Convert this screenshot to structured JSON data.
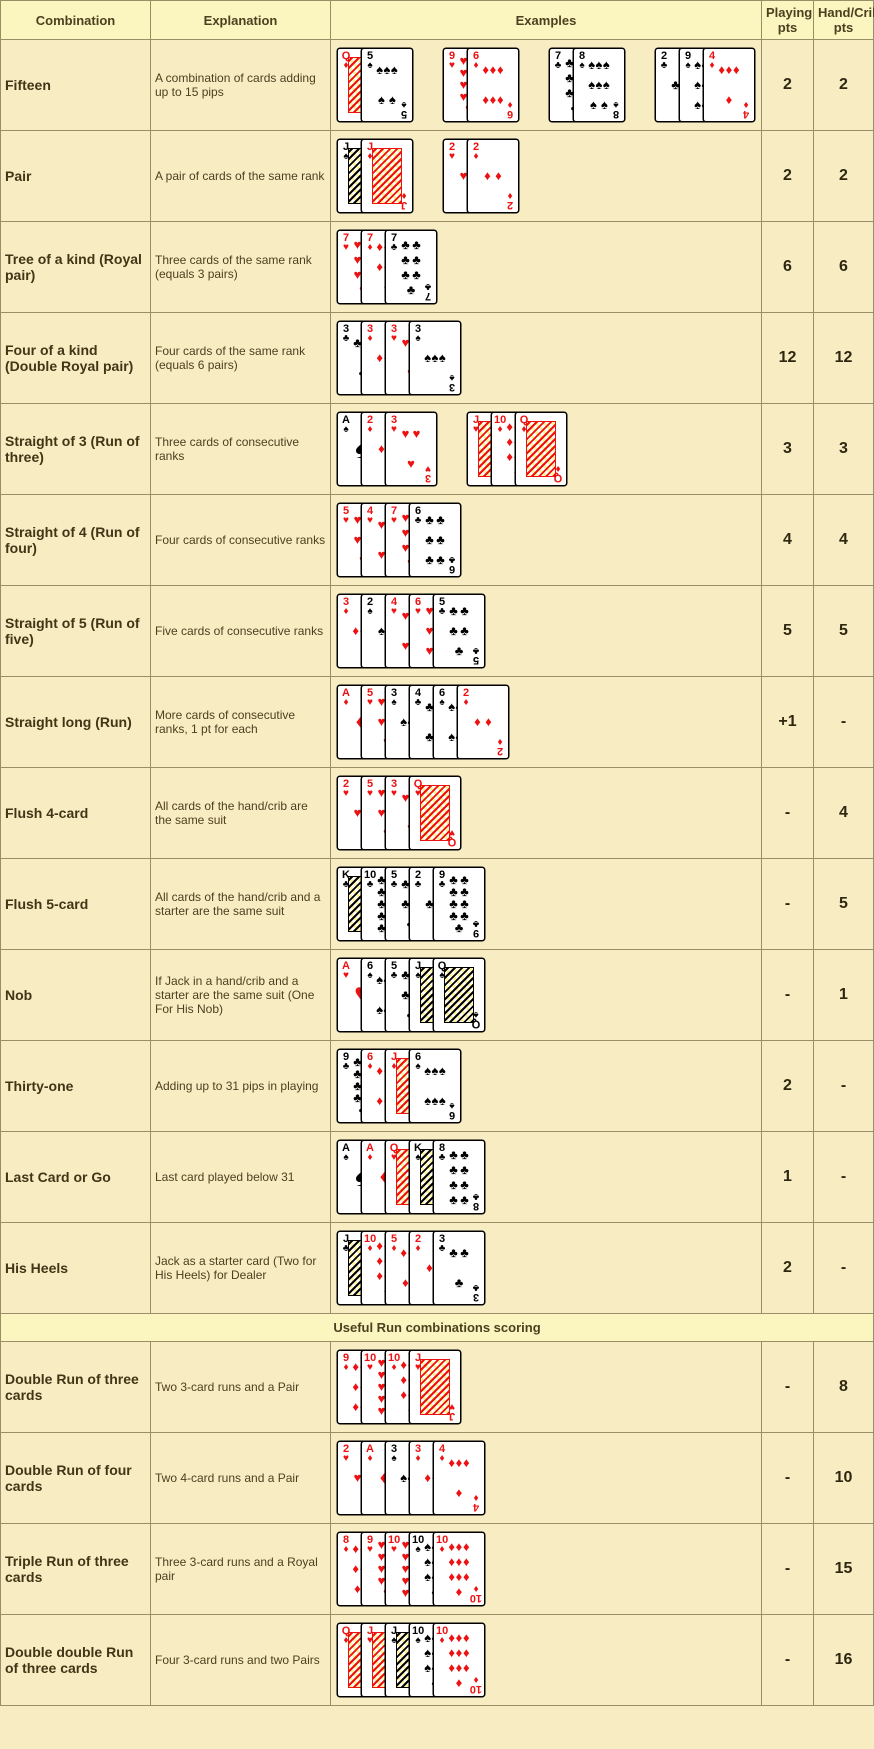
{
  "headers": {
    "combination": "Combination",
    "explanation": "Explanation",
    "examples": "Examples",
    "playing_pts": "Playing pts",
    "hand_crib_pts": "Hand/Crib pts"
  },
  "section_header": "Useful Run combinations scoring",
  "suit_glyphs": {
    "S": "♠",
    "H": "♥",
    "D": "♦",
    "C": "♣"
  },
  "suit_colors": {
    "S": "black",
    "H": "red",
    "D": "red",
    "C": "black"
  },
  "rows": [
    {
      "name": "Fifteen",
      "explanation": "A combination of cards adding up to 15 pips",
      "playing_pts": "2",
      "hand_pts": "2",
      "examples": [
        {
          "layout": "overlap",
          "cards": [
            {
              "r": "Q",
              "s": "D"
            },
            {
              "r": "5",
              "s": "S"
            }
          ]
        },
        {
          "layout": "overlap",
          "cards": [
            {
              "r": "9",
              "s": "H"
            },
            {
              "r": "6",
              "s": "D"
            }
          ]
        },
        {
          "layout": "overlap",
          "cards": [
            {
              "r": "7",
              "s": "C"
            },
            {
              "r": "8",
              "s": "S"
            }
          ]
        },
        {
          "layout": "overlap",
          "cards": [
            {
              "r": "2",
              "s": "C"
            },
            {
              "r": "9",
              "s": "S"
            },
            {
              "r": "4",
              "s": "D"
            }
          ]
        }
      ]
    },
    {
      "name": "Pair",
      "explanation": "A pair of cards of the same rank",
      "playing_pts": "2",
      "hand_pts": "2",
      "examples": [
        {
          "layout": "overlap",
          "cards": [
            {
              "r": "J",
              "s": "S"
            },
            {
              "r": "J",
              "s": "D"
            }
          ]
        },
        {
          "layout": "overlap",
          "cards": [
            {
              "r": "2",
              "s": "H"
            },
            {
              "r": "2",
              "s": "D"
            }
          ]
        }
      ]
    },
    {
      "name": "Tree of a kind (Royal pair)",
      "explanation": "Three cards of the same rank (equals 3 pairs)",
      "playing_pts": "6",
      "hand_pts": "6",
      "examples": [
        {
          "layout": "overlap",
          "cards": [
            {
              "r": "7",
              "s": "H"
            },
            {
              "r": "7",
              "s": "D"
            },
            {
              "r": "7",
              "s": "C"
            }
          ]
        }
      ]
    },
    {
      "name": "Four of a kind (Double Royal pair)",
      "explanation": "Four cards of the same rank (equals 6 pairs)",
      "playing_pts": "12",
      "hand_pts": "12",
      "examples": [
        {
          "layout": "overlap",
          "cards": [
            {
              "r": "3",
              "s": "C"
            },
            {
              "r": "3",
              "s": "D"
            },
            {
              "r": "3",
              "s": "H"
            },
            {
              "r": "3",
              "s": "S"
            }
          ]
        }
      ]
    },
    {
      "name": "Straight of 3 (Run of three)",
      "explanation": "Three cards of consecutive ranks",
      "playing_pts": "3",
      "hand_pts": "3",
      "examples": [
        {
          "layout": "overlap",
          "cards": [
            {
              "r": "A",
              "s": "S"
            },
            {
              "r": "2",
              "s": "D"
            },
            {
              "r": "3",
              "s": "H"
            }
          ]
        },
        {
          "layout": "overlap",
          "cards": [
            {
              "r": "J",
              "s": "H"
            },
            {
              "r": "10",
              "s": "D"
            },
            {
              "r": "Q",
              "s": "D"
            }
          ]
        }
      ]
    },
    {
      "name": "Straight of 4 (Run of four)",
      "explanation": "Four cards of consecutive ranks",
      "playing_pts": "4",
      "hand_pts": "4",
      "examples": [
        {
          "layout": "overlap",
          "cards": [
            {
              "r": "5",
              "s": "H"
            },
            {
              "r": "4",
              "s": "H"
            },
            {
              "r": "7",
              "s": "H"
            },
            {
              "r": "6",
              "s": "C"
            }
          ]
        }
      ]
    },
    {
      "name": "Straight of 5 (Run of five)",
      "explanation": "Five cards of consecutive ranks",
      "playing_pts": "5",
      "hand_pts": "5",
      "examples": [
        {
          "layout": "overlap",
          "cards": [
            {
              "r": "3",
              "s": "D"
            },
            {
              "r": "2",
              "s": "S"
            },
            {
              "r": "4",
              "s": "H"
            },
            {
              "r": "6",
              "s": "H"
            },
            {
              "r": "5",
              "s": "C"
            }
          ]
        }
      ]
    },
    {
      "name": "Straight long (Run)",
      "explanation": "More cards of consecutive ranks, 1 pt for each",
      "playing_pts": "+1",
      "hand_pts": "-",
      "examples": [
        {
          "layout": "overlap",
          "cards": [
            {
              "r": "A",
              "s": "D"
            },
            {
              "r": "5",
              "s": "H"
            },
            {
              "r": "3",
              "s": "S"
            },
            {
              "r": "4",
              "s": "C"
            },
            {
              "r": "6",
              "s": "S"
            },
            {
              "r": "2",
              "s": "D"
            }
          ]
        }
      ]
    },
    {
      "name": "Flush 4-card",
      "explanation": "All cards of the hand/crib are the same suit",
      "playing_pts": "-",
      "hand_pts": "4",
      "examples": [
        {
          "layout": "overlap",
          "cards": [
            {
              "r": "2",
              "s": "H"
            },
            {
              "r": "5",
              "s": "H"
            },
            {
              "r": "3",
              "s": "H"
            },
            {
              "r": "Q",
              "s": "H"
            }
          ]
        }
      ]
    },
    {
      "name": "Flush 5-card",
      "explanation": "All cards of the hand/crib and a starter are the same suit",
      "playing_pts": "-",
      "hand_pts": "5",
      "examples": [
        {
          "layout": "overlap",
          "cards": [
            {
              "r": "K",
              "s": "C"
            },
            {
              "r": "10",
              "s": "C"
            },
            {
              "r": "5",
              "s": "C"
            },
            {
              "r": "2",
              "s": "C"
            },
            {
              "r": "9",
              "s": "C"
            }
          ]
        }
      ]
    },
    {
      "name": "Nob",
      "explanation": "If Jack in a hand/crib and a starter are the same suit (One For His Nob)",
      "playing_pts": "-",
      "hand_pts": "1",
      "examples": [
        {
          "layout": "overlap",
          "cards": [
            {
              "r": "A",
              "s": "H"
            },
            {
              "r": "6",
              "s": "S"
            },
            {
              "r": "5",
              "s": "C"
            },
            {
              "r": "J",
              "s": "S"
            },
            {
              "r": "Q",
              "s": "S"
            }
          ]
        }
      ]
    },
    {
      "name": "Thirty-one",
      "explanation": "Adding up to 31 pips in playing",
      "playing_pts": "2",
      "hand_pts": "-",
      "examples": [
        {
          "layout": "overlap",
          "cards": [
            {
              "r": "9",
              "s": "C"
            },
            {
              "r": "6",
              "s": "D"
            },
            {
              "r": "J",
              "s": "D"
            },
            {
              "r": "6",
              "s": "S"
            }
          ]
        }
      ]
    },
    {
      "name": "Last Card or Go",
      "explanation": "Last card played below 31",
      "playing_pts": "1",
      "hand_pts": "-",
      "examples": [
        {
          "layout": "overlap",
          "cards": [
            {
              "r": "A",
              "s": "S"
            },
            {
              "r": "A",
              "s": "D"
            },
            {
              "r": "Q",
              "s": "H"
            },
            {
              "r": "K",
              "s": "S"
            },
            {
              "r": "8",
              "s": "C"
            }
          ]
        }
      ]
    },
    {
      "name": "His Heels",
      "explanation": "Jack as a starter card (Two for His Heels) for Dealer",
      "playing_pts": "2",
      "hand_pts": "-",
      "examples": [
        {
          "layout": "overlap",
          "cards": [
            {
              "r": "J",
              "s": "C"
            },
            {
              "r": "10",
              "s": "D"
            },
            {
              "r": "5",
              "s": "D"
            },
            {
              "r": "2",
              "s": "D"
            },
            {
              "r": "3",
              "s": "C"
            }
          ]
        }
      ]
    }
  ],
  "run_rows": [
    {
      "name": "Double Run of three cards",
      "explanation": "Two 3-card runs and a Pair",
      "playing_pts": "-",
      "hand_pts": "8",
      "examples": [
        {
          "layout": "overlap",
          "cards": [
            {
              "r": "9",
              "s": "D"
            },
            {
              "r": "10",
              "s": "H"
            },
            {
              "r": "10",
              "s": "D"
            },
            {
              "r": "J",
              "s": "H"
            }
          ]
        }
      ]
    },
    {
      "name": "Double Run of four cards",
      "explanation": "Two 4-card runs and a Pair",
      "playing_pts": "-",
      "hand_pts": "10",
      "examples": [
        {
          "layout": "overlap",
          "cards": [
            {
              "r": "2",
              "s": "H"
            },
            {
              "r": "A",
              "s": "D"
            },
            {
              "r": "3",
              "s": "S"
            },
            {
              "r": "3",
              "s": "D"
            },
            {
              "r": "4",
              "s": "D"
            }
          ]
        }
      ]
    },
    {
      "name": "Triple Run of three cards",
      "explanation": "Three 3-card runs and a Royal pair",
      "playing_pts": "-",
      "hand_pts": "15",
      "examples": [
        {
          "layout": "overlap",
          "cards": [
            {
              "r": "8",
              "s": "D"
            },
            {
              "r": "9",
              "s": "H"
            },
            {
              "r": "10",
              "s": "H"
            },
            {
              "r": "10",
              "s": "S"
            },
            {
              "r": "10",
              "s": "D"
            }
          ]
        }
      ]
    },
    {
      "name": "Double double Run of three cards",
      "explanation": "Four 3-card runs and two Pairs",
      "playing_pts": "-",
      "hand_pts": "16",
      "examples": [
        {
          "layout": "overlap",
          "cards": [
            {
              "r": "Q",
              "s": "D"
            },
            {
              "r": "J",
              "s": "H"
            },
            {
              "r": "J",
              "s": "S"
            },
            {
              "r": "10",
              "s": "S"
            },
            {
              "r": "10",
              "s": "D"
            }
          ]
        }
      ]
    }
  ]
}
